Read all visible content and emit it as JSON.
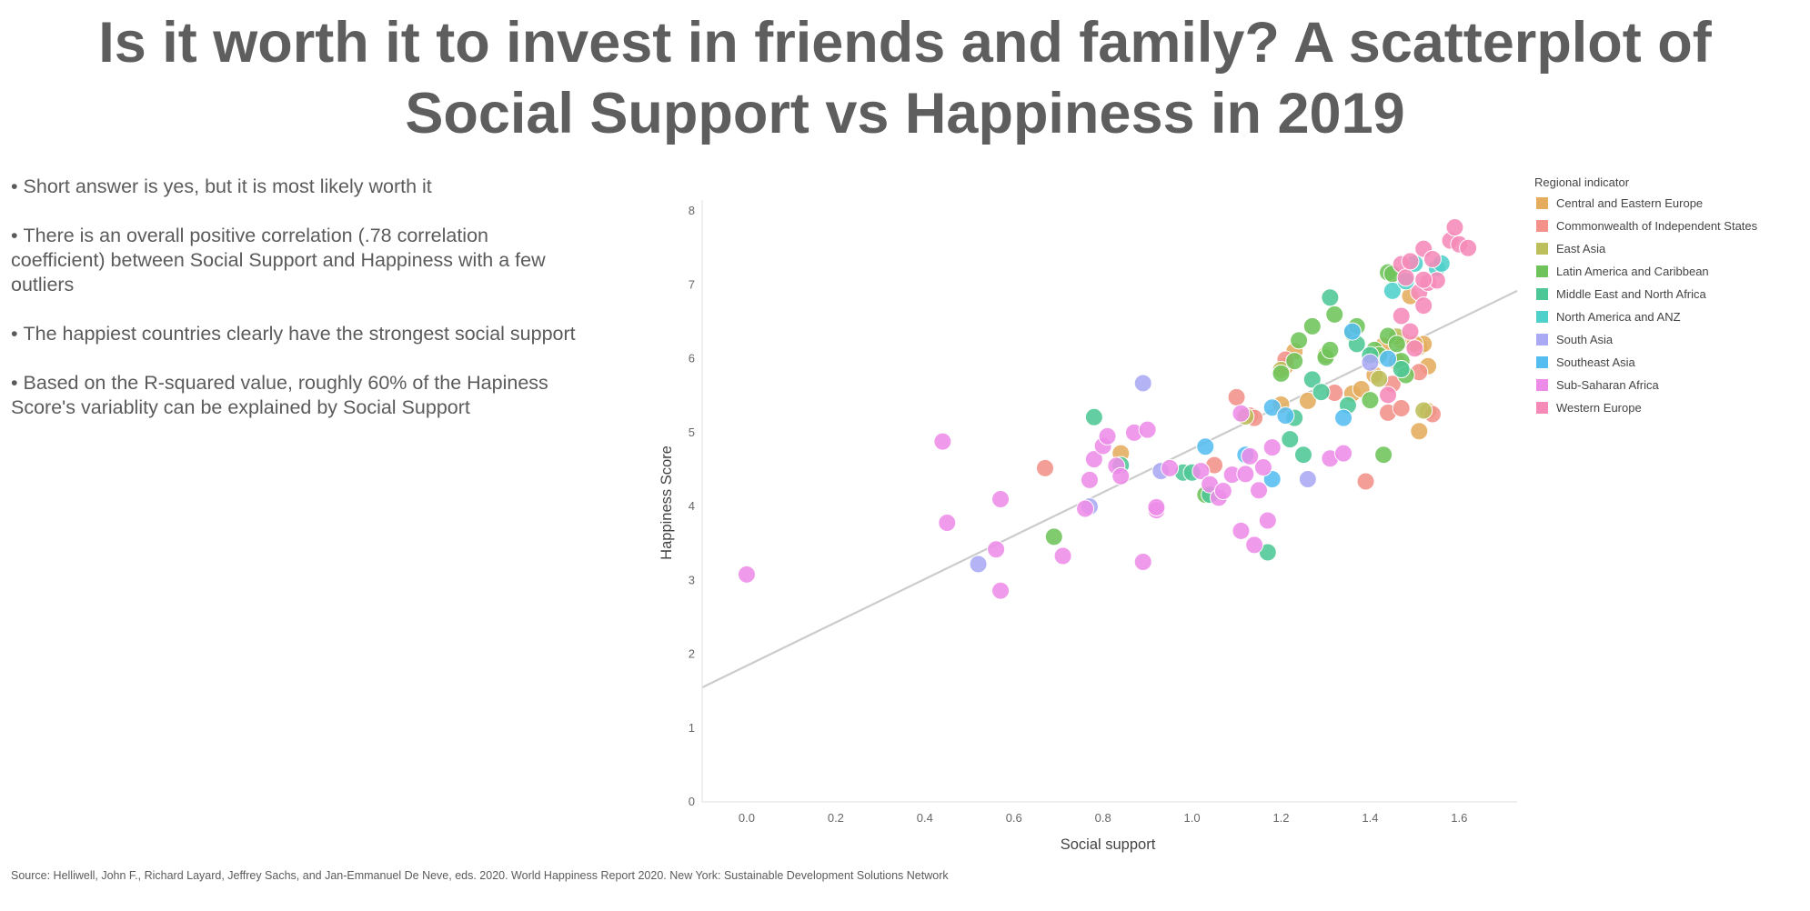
{
  "title_lines": [
    "Is it worth it to invest in friends and family? A scatterplot of",
    "Social Support vs Happiness in 2019"
  ],
  "bullets": [
    "Short answer is yes, but it is most likely worth it",
    "There is an overall positive correlation (.78 correlation coefficient) between Social Support and Happiness with a few outliers",
    "The happiest countries clearly have the strongest social support",
    "Based on the R-squared value, roughly 60% of the Hapiness Score's variablity can be explained by Social Support"
  ],
  "source": "Source: Helliwell, John F., Richard Layard, Jeffrey Sachs, and Jan-Emmanuel De Neve, eds. 2020. World Happiness Report 2020. New York: Sustainable Development Solutions Network",
  "chart_data": {
    "type": "scatter",
    "xlabel": "Social support",
    "ylabel": "Happiness Score",
    "xlim": [
      -0.1,
      1.73
    ],
    "ylim": [
      0,
      8.15
    ],
    "x_ticks": [
      "0.0",
      "0.2",
      "0.4",
      "0.6",
      "0.8",
      "1.0",
      "1.2",
      "1.4",
      "1.6"
    ],
    "y_ticks": [
      "0",
      "1",
      "2",
      "3",
      "4",
      "5",
      "6",
      "7",
      "8"
    ],
    "grid": false,
    "trendline": {
      "x": [
        -0.1,
        1.73
      ],
      "y": [
        1.55,
        6.92
      ],
      "color": "#cccccc"
    },
    "legend": {
      "title": "Regional indicator",
      "placement": "right",
      "entries": [
        {
          "label": "Central and Eastern Europe",
          "color": "#e4ac5c"
        },
        {
          "label": "Commonwealth of Independent States",
          "color": "#f3918a"
        },
        {
          "label": "East Asia",
          "color": "#bcbf5b"
        },
        {
          "label": "Latin America and Caribbean",
          "color": "#6ec45a"
        },
        {
          "label": "Middle East and North Africa",
          "color": "#4dc795"
        },
        {
          "label": "North America and ANZ",
          "color": "#4fd0cb"
        },
        {
          "label": "South Asia",
          "color": "#a9a9f4"
        },
        {
          "label": "Southeast Asia",
          "color": "#56bdf0"
        },
        {
          "label": "Sub-Saharan Africa",
          "color": "#ed8ce8"
        },
        {
          "label": "Western Europe",
          "color": "#f58ab8"
        }
      ]
    },
    "series": [
      {
        "name": "Central and Eastern Europe",
        "points": [
          [
            0.84,
            4.72
          ],
          [
            1.21,
            5.9
          ],
          [
            1.23,
            6.1
          ],
          [
            1.26,
            5.43
          ],
          [
            1.2,
            5.38
          ],
          [
            1.36,
            5.53
          ],
          [
            1.38,
            5.59
          ],
          [
            1.41,
            5.78
          ],
          [
            1.43,
            6.18
          ],
          [
            1.46,
            5.96
          ],
          [
            1.47,
            6.25
          ],
          [
            1.49,
            6.85
          ],
          [
            1.51,
            6.16
          ],
          [
            1.52,
            6.2
          ],
          [
            1.53,
            5.9
          ],
          [
            1.51,
            5.02
          ],
          [
            1.53,
            5.29
          ],
          [
            1.5,
            6.2
          ]
        ]
      },
      {
        "name": "Commonwealth of Independent States",
        "points": [
          [
            0.67,
            4.52
          ],
          [
            1.05,
            4.56
          ],
          [
            1.1,
            5.48
          ],
          [
            1.13,
            5.23
          ],
          [
            1.21,
            5.99
          ],
          [
            1.32,
            5.54
          ],
          [
            1.39,
            4.34
          ],
          [
            1.44,
            5.27
          ],
          [
            1.45,
            5.66
          ],
          [
            1.47,
            5.33
          ],
          [
            1.51,
            5.82
          ],
          [
            1.54,
            5.25
          ],
          [
            1.14,
            5.2
          ]
        ]
      },
      {
        "name": "East Asia",
        "points": [
          [
            1.12,
            5.22
          ],
          [
            1.2,
            5.85
          ],
          [
            1.3,
            6.05
          ],
          [
            1.42,
            5.73
          ],
          [
            1.46,
            6.3
          ],
          [
            1.52,
            5.3
          ]
        ]
      },
      {
        "name": "Latin America and Caribbean",
        "points": [
          [
            0.69,
            3.59
          ],
          [
            1.03,
            4.16
          ],
          [
            1.2,
            5.8
          ],
          [
            1.23,
            5.97
          ],
          [
            1.24,
            6.25
          ],
          [
            1.27,
            6.44
          ],
          [
            1.3,
            6.02
          ],
          [
            1.31,
            6.12
          ],
          [
            1.32,
            6.6
          ],
          [
            1.36,
            6.35
          ],
          [
            1.37,
            6.44
          ],
          [
            1.4,
            5.44
          ],
          [
            1.41,
            6.12
          ],
          [
            1.43,
            4.7
          ],
          [
            1.44,
            6.31
          ],
          [
            1.44,
            7.17
          ],
          [
            1.45,
            7.15
          ],
          [
            1.46,
            6.2
          ],
          [
            1.47,
            5.97
          ],
          [
            1.48,
            5.78
          ],
          [
            1.42,
            6.05
          ]
        ]
      },
      {
        "name": "Middle East and North Africa",
        "points": [
          [
            0.78,
            5.21
          ],
          [
            0.84,
            4.56
          ],
          [
            0.98,
            4.46
          ],
          [
            1.0,
            4.46
          ],
          [
            1.04,
            4.16
          ],
          [
            1.17,
            3.38
          ],
          [
            1.22,
            4.91
          ],
          [
            1.23,
            5.2
          ],
          [
            1.25,
            4.7
          ],
          [
            1.27,
            5.72
          ],
          [
            1.29,
            5.55
          ],
          [
            1.31,
            6.83
          ],
          [
            1.35,
            5.37
          ],
          [
            1.37,
            6.2
          ],
          [
            1.4,
            6.05
          ],
          [
            1.47,
            5.86
          ]
        ]
      },
      {
        "name": "North America and ANZ",
        "points": [
          [
            1.45,
            6.92
          ],
          [
            1.48,
            7.05
          ],
          [
            1.5,
            7.29
          ],
          [
            1.55,
            7.23
          ],
          [
            1.56,
            7.29
          ]
        ]
      },
      {
        "name": "South Asia",
        "points": [
          [
            0.52,
            3.22
          ],
          [
            0.77,
            4.0
          ],
          [
            0.89,
            5.67
          ],
          [
            0.93,
            4.48
          ],
          [
            1.26,
            4.37
          ],
          [
            1.4,
            5.95
          ]
        ]
      },
      {
        "name": "Southeast Asia",
        "points": [
          [
            1.03,
            4.81
          ],
          [
            1.12,
            4.7
          ],
          [
            1.18,
            4.37
          ],
          [
            1.18,
            5.34
          ],
          [
            1.21,
            5.23
          ],
          [
            1.34,
            5.2
          ],
          [
            1.36,
            6.37
          ],
          [
            1.44,
            6.0
          ]
        ]
      },
      {
        "name": "Sub-Saharan Africa",
        "points": [
          [
            0.0,
            3.08
          ],
          [
            0.44,
            4.88
          ],
          [
            0.45,
            3.78
          ],
          [
            0.56,
            3.42
          ],
          [
            0.57,
            4.1
          ],
          [
            0.57,
            2.86
          ],
          [
            0.71,
            3.33
          ],
          [
            0.76,
            3.97
          ],
          [
            0.77,
            4.36
          ],
          [
            0.78,
            4.64
          ],
          [
            0.8,
            4.82
          ],
          [
            0.81,
            4.95
          ],
          [
            0.83,
            4.55
          ],
          [
            0.84,
            4.41
          ],
          [
            0.87,
            5.0
          ],
          [
            0.89,
            3.25
          ],
          [
            0.9,
            5.04
          ],
          [
            0.92,
            3.95
          ],
          [
            0.92,
            3.99
          ],
          [
            0.95,
            4.52
          ],
          [
            1.02,
            4.48
          ],
          [
            1.04,
            4.3
          ],
          [
            1.06,
            4.12
          ],
          [
            1.07,
            4.21
          ],
          [
            1.09,
            4.43
          ],
          [
            1.11,
            3.67
          ],
          [
            1.11,
            5.26
          ],
          [
            1.12,
            4.44
          ],
          [
            1.13,
            4.68
          ],
          [
            1.14,
            3.48
          ],
          [
            1.15,
            4.22
          ],
          [
            1.16,
            4.53
          ],
          [
            1.17,
            3.81
          ],
          [
            1.18,
            4.8
          ],
          [
            1.31,
            4.65
          ],
          [
            1.34,
            4.72
          ]
        ]
      },
      {
        "name": "Western Europe",
        "points": [
          [
            1.44,
            5.51
          ],
          [
            1.47,
            6.58
          ],
          [
            1.47,
            7.28
          ],
          [
            1.48,
            7.1
          ],
          [
            1.49,
            7.32
          ],
          [
            1.49,
            6.37
          ],
          [
            1.51,
            6.9
          ],
          [
            1.52,
            6.72
          ],
          [
            1.52,
            7.49
          ],
          [
            1.53,
            7.03
          ],
          [
            1.54,
            7.35
          ],
          [
            1.55,
            7.06
          ],
          [
            1.58,
            7.6
          ],
          [
            1.59,
            7.78
          ],
          [
            1.6,
            7.55
          ],
          [
            1.62,
            7.5
          ],
          [
            1.52,
            7.07
          ],
          [
            1.5,
            6.14
          ]
        ]
      }
    ]
  }
}
